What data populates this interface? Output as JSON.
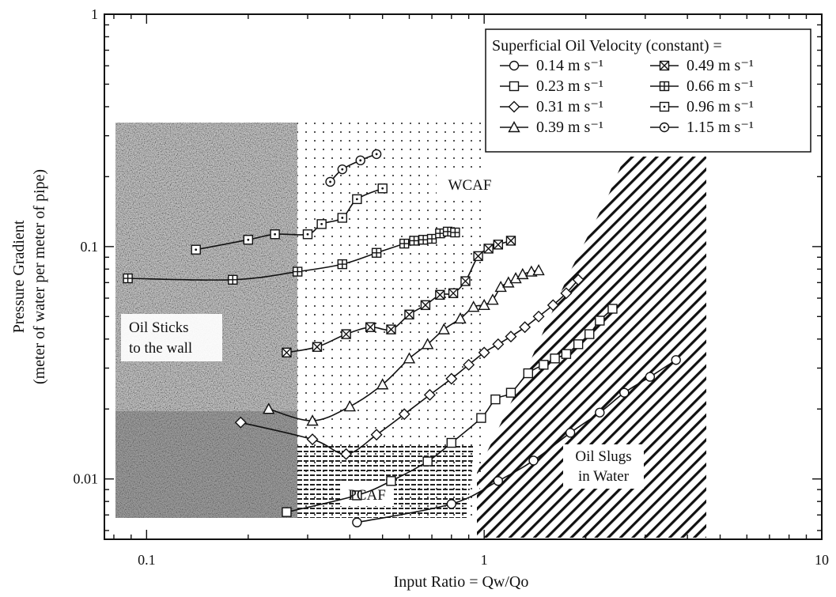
{
  "chart_data": {
    "type": "line",
    "title": "",
    "xlabel": "Input Ratio = Qw/Qo",
    "ylabel": "Pressure Gradient",
    "ylabel_sub": "(meter of water per meter of pipe)",
    "x_scale": "log",
    "y_scale": "log",
    "xlim": [
      0.075,
      10
    ],
    "ylim": [
      0.0055,
      1
    ],
    "x_ticks": [
      {
        "value": 0.1,
        "label": "0.1"
      },
      {
        "value": 1,
        "label": "1"
      },
      {
        "value": 10,
        "label": "10"
      }
    ],
    "y_ticks": [
      {
        "value": 0.01,
        "label": "0.01"
      },
      {
        "value": 0.1,
        "label": "0.1"
      },
      {
        "value": 1,
        "label": "1"
      }
    ],
    "grid": false,
    "legend": {
      "title": "Superficial Oil Velocity (constant) =",
      "position": "top-right",
      "columns": 2
    },
    "series": [
      {
        "name": "0.14 m s⁻¹",
        "marker": "circle",
        "x": [
          0.42,
          0.8,
          1.1,
          1.4,
          1.8,
          2.2,
          2.6,
          3.1,
          3.7
        ],
        "y": [
          0.0065,
          0.0078,
          0.0098,
          0.012,
          0.0158,
          0.0193,
          0.0235,
          0.0275,
          0.0325
        ]
      },
      {
        "name": "0.23 m s⁻¹",
        "marker": "square",
        "x": [
          0.26,
          0.42,
          0.53,
          0.68,
          0.8,
          0.98,
          1.08,
          1.2,
          1.35,
          1.5,
          1.62,
          1.75,
          1.9,
          2.05,
          2.2,
          2.4
        ],
        "y": [
          0.0072,
          0.0085,
          0.0098,
          0.0119,
          0.0143,
          0.0183,
          0.022,
          0.0235,
          0.0285,
          0.031,
          0.033,
          0.0345,
          0.038,
          0.042,
          0.048,
          0.054
        ]
      },
      {
        "name": "0.31 m s⁻¹",
        "marker": "diamond",
        "x": [
          0.19,
          0.31,
          0.39,
          0.48,
          0.58,
          0.69,
          0.8,
          0.9,
          1.0,
          1.1,
          1.2,
          1.32,
          1.45,
          1.6,
          1.75,
          1.9
        ],
        "y": [
          0.0175,
          0.0148,
          0.0128,
          0.0155,
          0.019,
          0.023,
          0.027,
          0.031,
          0.035,
          0.038,
          0.041,
          0.045,
          0.05,
          0.056,
          0.063,
          0.072
        ]
      },
      {
        "name": "0.39 m s⁻¹",
        "marker": "triangle",
        "x": [
          0.23,
          0.31,
          0.4,
          0.5,
          0.6,
          0.68,
          0.76,
          0.85,
          0.93,
          1.0,
          1.06,
          1.12,
          1.18,
          1.24,
          1.3,
          1.38,
          1.45
        ],
        "y": [
          0.02,
          0.0178,
          0.0205,
          0.0255,
          0.033,
          0.038,
          0.044,
          0.049,
          0.055,
          0.056,
          0.059,
          0.067,
          0.07,
          0.073,
          0.076,
          0.078,
          0.079
        ]
      },
      {
        "name": "0.49 m s⁻¹",
        "marker": "square-cross",
        "x": [
          0.26,
          0.32,
          0.39,
          0.46,
          0.53,
          0.6,
          0.67,
          0.74,
          0.81,
          0.88,
          0.96,
          1.03,
          1.1,
          1.2
        ],
        "y": [
          0.035,
          0.037,
          0.042,
          0.045,
          0.044,
          0.051,
          0.056,
          0.062,
          0.063,
          0.071,
          0.091,
          0.098,
          0.102,
          0.106
        ]
      },
      {
        "name": "0.66 m s⁻¹",
        "marker": "square-grid",
        "x": [
          0.088,
          0.18,
          0.28,
          0.38,
          0.48,
          0.58,
          0.62,
          0.66,
          0.7,
          0.74,
          0.78,
          0.82
        ],
        "y": [
          0.073,
          0.072,
          0.078,
          0.084,
          0.094,
          0.103,
          0.106,
          0.107,
          0.108,
          0.114,
          0.116,
          0.115
        ]
      },
      {
        "name": "0.96 m s⁻¹",
        "marker": "square-dot",
        "x": [
          0.14,
          0.2,
          0.24,
          0.3,
          0.33,
          0.38,
          0.42,
          0.5
        ],
        "y": [
          0.097,
          0.107,
          0.113,
          0.113,
          0.125,
          0.133,
          0.16,
          0.178
        ]
      },
      {
        "name": "1.15 m s⁻¹",
        "marker": "circle-dot",
        "x": [
          0.35,
          0.38,
          0.43,
          0.48
        ],
        "y": [
          0.19,
          0.215,
          0.235,
          0.25
        ]
      }
    ],
    "annotations": [
      {
        "text": "WCAF"
      },
      {
        "text": "PCAF"
      },
      {
        "text": "Oil Sticks to the wall",
        "lines": [
          "Oil Sticks",
          "to the wall"
        ]
      },
      {
        "text": "Oil Slugs in Water",
        "lines": [
          "Oil Slugs",
          "in Water"
        ]
      }
    ]
  }
}
